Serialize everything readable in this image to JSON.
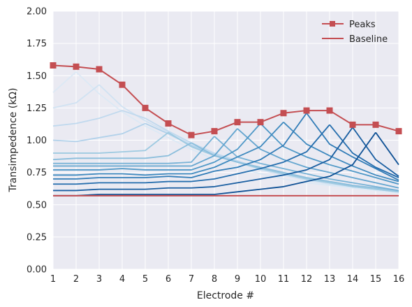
{
  "chart_data": {
    "type": "line",
    "xlabel": "Electrode #",
    "ylabel": "Transimpedence (kΩ)",
    "xlim": [
      1,
      16
    ],
    "ylim": [
      0,
      2.0
    ],
    "x_ticks": [
      "1",
      "2",
      "3",
      "4",
      "5",
      "6",
      "7",
      "8",
      "9",
      "10",
      "11",
      "12",
      "13",
      "14",
      "15",
      "16"
    ],
    "y_ticks": [
      "0.00",
      "0.25",
      "0.50",
      "0.75",
      "1.00",
      "1.25",
      "1.50",
      "1.75",
      "2.00"
    ],
    "grid": true,
    "legend_position": "top-right",
    "series": [
      {
        "name": "Peaks",
        "color": "#c44e52",
        "marker": "square",
        "x": [
          1,
          2,
          3,
          4,
          5,
          6,
          7,
          8,
          9,
          10,
          11,
          12,
          13,
          14,
          15,
          16
        ],
        "y": [
          1.58,
          1.57,
          1.55,
          1.43,
          1.25,
          1.13,
          1.04,
          1.07,
          1.14,
          1.14,
          1.21,
          1.23,
          1.23,
          1.12,
          1.12,
          1.07
        ]
      },
      {
        "name": "Baseline",
        "color": "#c44e52",
        "marker": "none",
        "x": [
          1,
          16
        ],
        "y": [
          0.57,
          0.57
        ]
      }
    ],
    "background_series": [
      {
        "color": "#dce9f5",
        "x": [
          1,
          2
        ],
        "y": [
          1.37,
          1.53
        ]
      },
      {
        "color": "#dce9f5",
        "x": [
          2,
          3,
          4,
          5,
          6,
          7,
          8,
          9,
          10,
          11,
          12,
          13,
          14,
          15,
          16
        ],
        "y": [
          1.53,
          1.36,
          1.22,
          1.11,
          1.02,
          0.93,
          0.85,
          0.79,
          0.74,
          0.7,
          0.67,
          0.65,
          0.63,
          0.61,
          0.59
        ]
      },
      {
        "color": "#d0e2f2",
        "x": [
          1,
          2,
          3
        ],
        "y": [
          1.25,
          1.29,
          1.43
        ]
      },
      {
        "color": "#d0e2f2",
        "x": [
          3,
          4,
          5,
          6,
          7,
          8,
          9,
          10,
          11,
          12,
          13,
          14,
          15,
          16
        ],
        "y": [
          1.43,
          1.26,
          1.15,
          1.06,
          0.97,
          0.89,
          0.83,
          0.77,
          0.73,
          0.69,
          0.66,
          0.64,
          0.62,
          0.6
        ]
      },
      {
        "color": "#c0d9ee",
        "x": [
          1,
          2,
          3,
          4
        ],
        "y": [
          1.11,
          1.13,
          1.17,
          1.23
        ]
      },
      {
        "color": "#c0d9ee",
        "x": [
          4,
          5,
          6,
          7,
          8,
          9,
          10,
          11,
          12,
          13,
          14,
          15,
          16
        ],
        "y": [
          1.23,
          1.17,
          1.07,
          0.98,
          0.9,
          0.84,
          0.78,
          0.74,
          0.7,
          0.67,
          0.64,
          0.62,
          0.6
        ]
      },
      {
        "color": "#b1d1ea",
        "x": [
          1,
          2,
          3,
          4,
          5
        ],
        "y": [
          1.0,
          0.99,
          1.02,
          1.05,
          1.13
        ]
      },
      {
        "color": "#b1d1ea",
        "x": [
          5,
          6,
          7,
          8,
          9,
          10,
          11,
          12,
          13,
          14,
          15,
          16
        ],
        "y": [
          1.13,
          1.05,
          0.96,
          0.89,
          0.83,
          0.78,
          0.74,
          0.7,
          0.67,
          0.64,
          0.62,
          0.6
        ]
      },
      {
        "color": "#9ecae1",
        "x": [
          1,
          2,
          3,
          4,
          5,
          6
        ],
        "y": [
          0.9,
          0.9,
          0.9,
          0.91,
          0.92,
          1.06
        ]
      },
      {
        "color": "#9ecae1",
        "x": [
          6,
          7,
          8,
          9,
          10,
          11,
          12,
          13,
          14,
          15,
          16
        ],
        "y": [
          1.06,
          0.95,
          0.88,
          0.83,
          0.78,
          0.74,
          0.7,
          0.67,
          0.64,
          0.62,
          0.6
        ]
      },
      {
        "color": "#8bbedc",
        "x": [
          1,
          2,
          3,
          4,
          5,
          6,
          7
        ],
        "y": [
          0.85,
          0.86,
          0.86,
          0.86,
          0.86,
          0.88,
          0.98
        ]
      },
      {
        "color": "#8bbedc",
        "x": [
          7,
          8,
          9,
          10,
          11,
          12,
          13,
          14,
          15,
          16
        ],
        "y": [
          0.98,
          0.88,
          0.83,
          0.79,
          0.75,
          0.71,
          0.68,
          0.65,
          0.63,
          0.61
        ]
      },
      {
        "color": "#77b2d6",
        "x": [
          1,
          2,
          3,
          4,
          5,
          6,
          7,
          8
        ],
        "y": [
          0.82,
          0.82,
          0.82,
          0.82,
          0.82,
          0.82,
          0.83,
          1.03
        ]
      },
      {
        "color": "#77b2d6",
        "x": [
          8,
          9,
          10,
          11,
          12,
          13,
          14,
          15,
          16
        ],
        "y": [
          1.03,
          0.87,
          0.82,
          0.78,
          0.74,
          0.7,
          0.67,
          0.64,
          0.61
        ]
      },
      {
        "color": "#63a5cf",
        "x": [
          1,
          2,
          3,
          4,
          5,
          6,
          7,
          8,
          9
        ],
        "y": [
          0.8,
          0.8,
          0.8,
          0.8,
          0.8,
          0.8,
          0.8,
          0.88,
          1.09
        ]
      },
      {
        "color": "#63a5cf",
        "x": [
          9,
          10,
          11,
          12,
          13,
          14,
          15,
          16
        ],
        "y": [
          1.09,
          0.93,
          0.85,
          0.79,
          0.75,
          0.71,
          0.67,
          0.63
        ]
      },
      {
        "color": "#4f98c7",
        "x": [
          1,
          2,
          3,
          4,
          5,
          6,
          7,
          8,
          9,
          10
        ],
        "y": [
          0.77,
          0.77,
          0.77,
          0.78,
          0.77,
          0.77,
          0.77,
          0.83,
          0.93,
          1.13
        ]
      },
      {
        "color": "#4f98c7",
        "x": [
          10,
          11,
          12,
          13,
          14,
          15,
          16
        ],
        "y": [
          1.13,
          0.95,
          0.87,
          0.81,
          0.76,
          0.71,
          0.66
        ]
      },
      {
        "color": "#3f8abf",
        "x": [
          1,
          2,
          3,
          4,
          5,
          6,
          7,
          8,
          9,
          10,
          11
        ],
        "y": [
          0.73,
          0.73,
          0.74,
          0.74,
          0.73,
          0.74,
          0.74,
          0.79,
          0.87,
          0.95,
          1.14
        ]
      },
      {
        "color": "#3f8abf",
        "x": [
          11,
          12,
          13,
          14,
          15,
          16
        ],
        "y": [
          1.14,
          0.97,
          0.88,
          0.8,
          0.73,
          0.68
        ]
      },
      {
        "color": "#317cb7",
        "x": [
          1,
          2,
          3,
          4,
          5,
          6,
          7,
          8,
          9,
          10,
          11,
          12
        ],
        "y": [
          0.7,
          0.7,
          0.71,
          0.71,
          0.71,
          0.72,
          0.71,
          0.76,
          0.79,
          0.85,
          0.96,
          1.21
        ]
      },
      {
        "color": "#317cb7",
        "x": [
          12,
          13,
          14,
          15,
          16
        ],
        "y": [
          1.21,
          0.97,
          0.87,
          0.78,
          0.69
        ]
      },
      {
        "color": "#246dad",
        "x": [
          1,
          2,
          3,
          4,
          5,
          6,
          7,
          8,
          9,
          10,
          11,
          12,
          13
        ],
        "y": [
          0.66,
          0.66,
          0.67,
          0.67,
          0.67,
          0.68,
          0.68,
          0.7,
          0.74,
          0.78,
          0.83,
          0.91,
          1.12
        ]
      },
      {
        "color": "#246dad",
        "x": [
          13,
          14,
          15,
          16
        ],
        "y": [
          1.12,
          0.9,
          0.79,
          0.71
        ]
      },
      {
        "color": "#195ea1",
        "x": [
          1,
          2,
          3,
          4,
          5,
          6,
          7,
          8,
          9,
          10,
          11,
          12,
          13,
          14
        ],
        "y": [
          0.61,
          0.61,
          0.62,
          0.62,
          0.62,
          0.63,
          0.63,
          0.64,
          0.67,
          0.7,
          0.73,
          0.77,
          0.85,
          1.1
        ]
      },
      {
        "color": "#195ea1",
        "x": [
          14,
          15,
          16
        ],
        "y": [
          1.1,
          0.85,
          0.72
        ]
      },
      {
        "color": "#0f5195",
        "x": [
          1,
          2,
          3,
          4,
          5,
          6,
          7,
          8,
          9,
          10,
          11,
          12,
          13,
          14,
          15
        ],
        "y": [
          0.57,
          0.57,
          0.58,
          0.58,
          0.58,
          0.58,
          0.58,
          0.58,
          0.6,
          0.62,
          0.64,
          0.68,
          0.72,
          0.81,
          1.06
        ]
      },
      {
        "color": "#0f5195",
        "x": [
          15,
          16
        ],
        "y": [
          1.06,
          0.81
        ]
      }
    ]
  }
}
